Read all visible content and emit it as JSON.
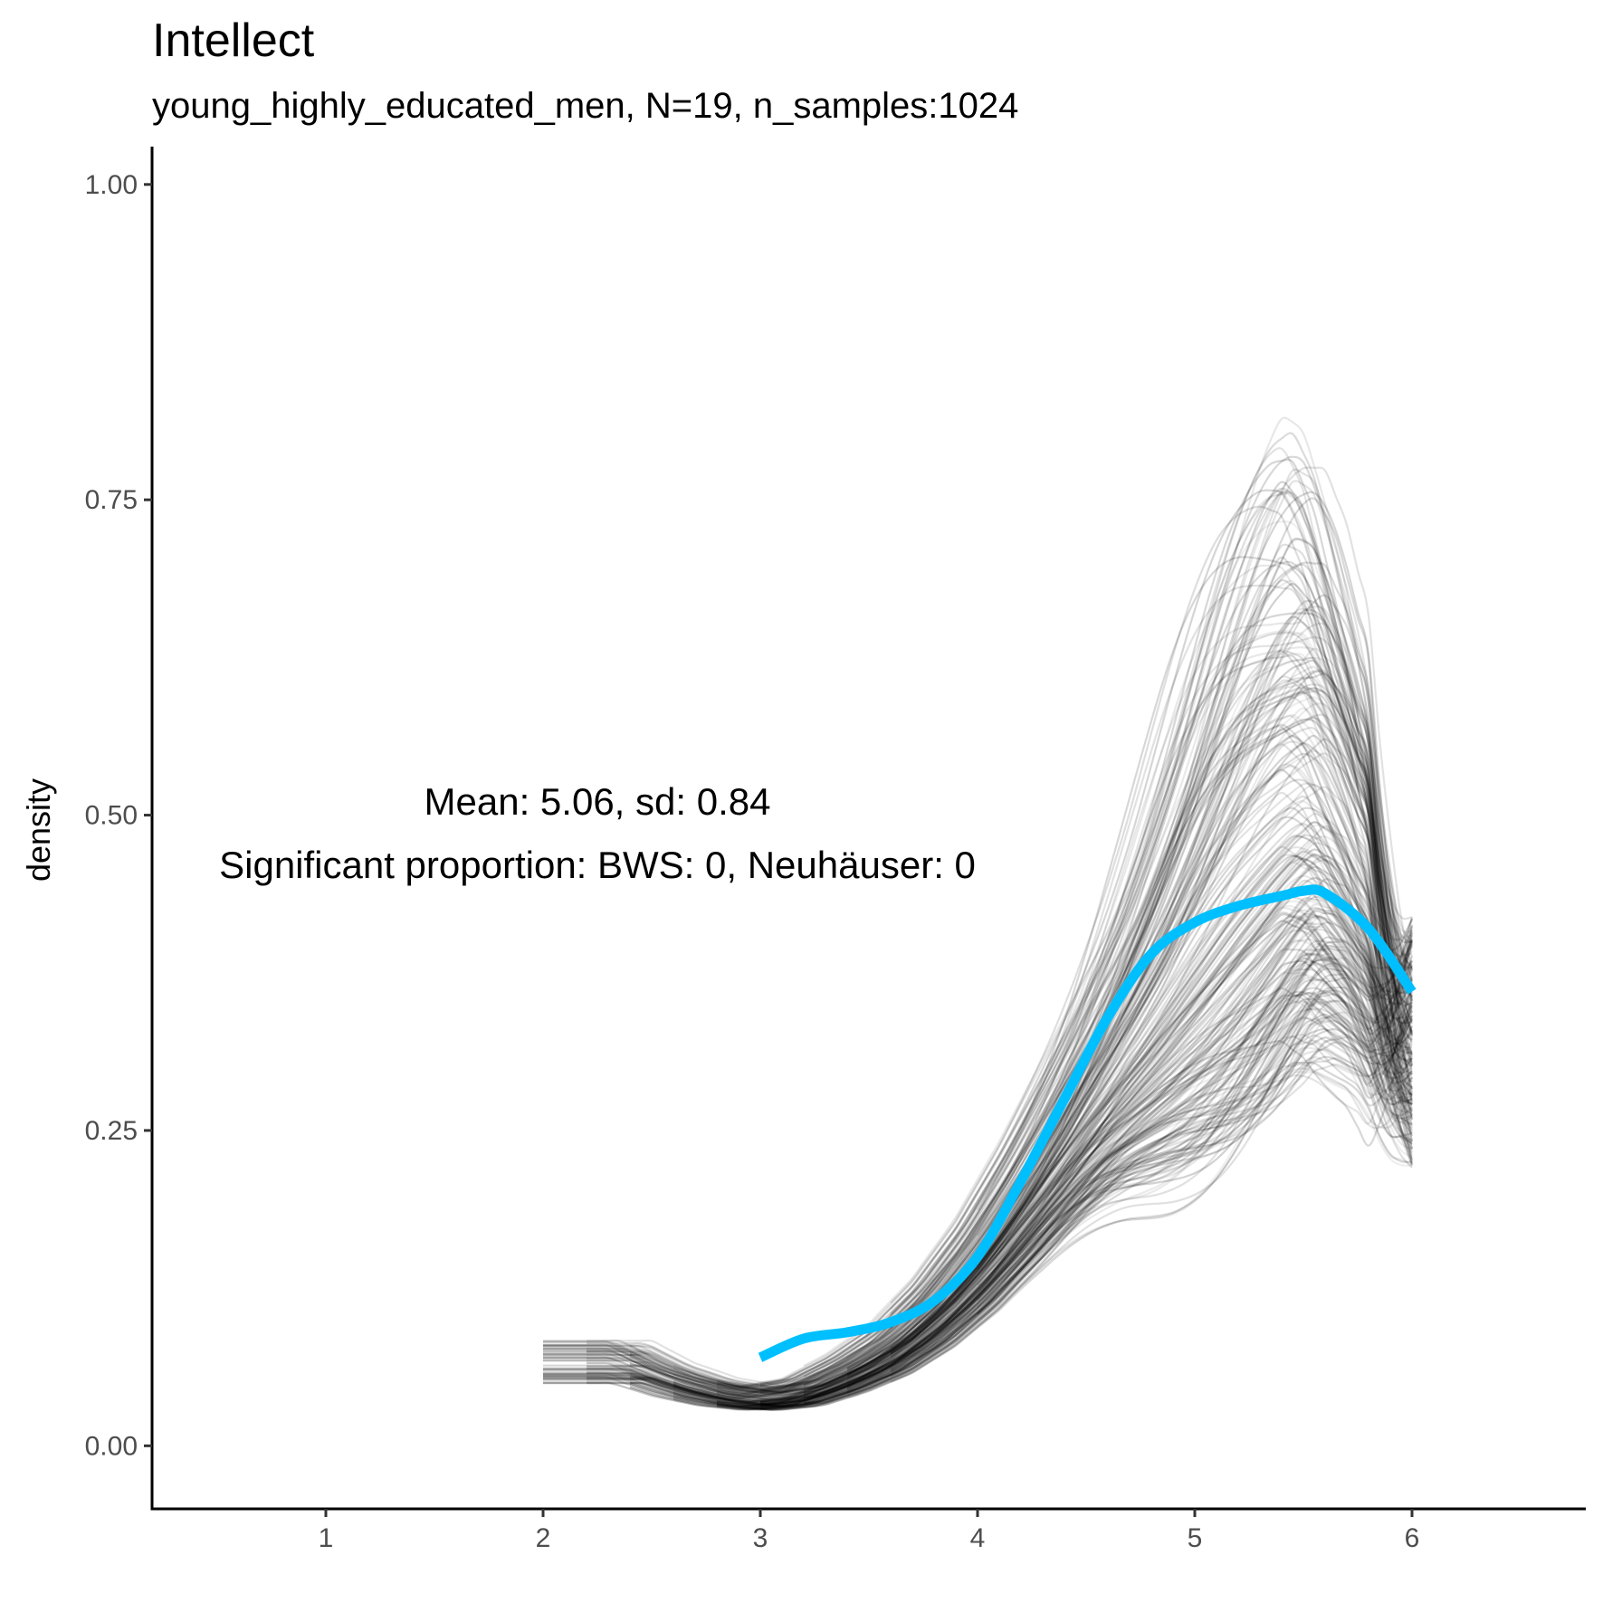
{
  "chart_data": {
    "type": "line",
    "title": "Intellect",
    "subtitle": "young_highly_educated_men, N=19, n_samples:1024",
    "xlabel": "",
    "ylabel": "density",
    "xlim": [
      0.2,
      6.8
    ],
    "ylim": [
      -0.05,
      1.03
    ],
    "x_ticks": [
      "1",
      "2",
      "3",
      "4",
      "5",
      "6"
    ],
    "y_ticks": [
      "0.00",
      "0.25",
      "0.50",
      "0.75",
      "1.00"
    ],
    "grid": false,
    "annotations": [
      "Mean: 5.06, sd: 0.84",
      "Significant proportion: BWS: 0, Neuhäuser: 0"
    ],
    "series": [
      {
        "color": "#00BFFF",
        "style": "thick-line",
        "x": [
          3.0,
          3.2,
          3.4,
          3.6,
          3.8,
          4.0,
          4.2,
          4.4,
          4.6,
          4.8,
          5.0,
          5.2,
          5.4,
          5.5,
          5.6,
          5.8,
          6.0
        ],
        "values": [
          0.07,
          0.085,
          0.09,
          0.098,
          0.115,
          0.15,
          0.21,
          0.275,
          0.34,
          0.39,
          0.415,
          0.428,
          0.436,
          0.44,
          0.438,
          0.41,
          0.36
        ]
      },
      {
        "color": "#000000",
        "style": "posterior-samples",
        "n_shown": 1024,
        "mean_x": [
          2.4,
          2.6,
          2.8,
          3.0,
          3.2,
          3.4,
          3.6,
          3.8,
          4.0,
          4.2,
          4.4,
          4.6,
          4.8,
          5.0,
          5.2,
          5.4,
          5.5,
          5.6,
          5.8,
          6.0
        ],
        "mean_y": [
          0.07,
          0.055,
          0.045,
          0.04,
          0.045,
          0.06,
          0.08,
          0.11,
          0.15,
          0.2,
          0.255,
          0.31,
          0.36,
          0.415,
          0.47,
          0.52,
          0.54,
          0.53,
          0.46,
          0.34
        ]
      }
    ]
  }
}
